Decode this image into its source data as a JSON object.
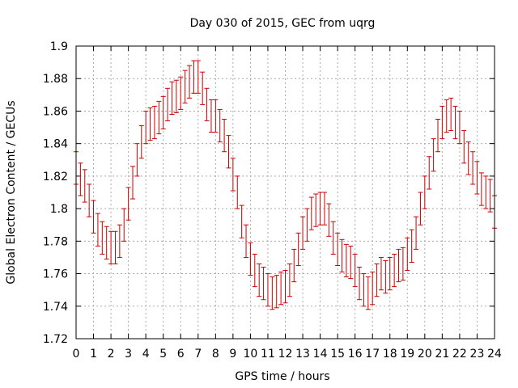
{
  "chart_data": {
    "type": "scatter",
    "title": "Day 030 of 2015, GEC from uqrg",
    "xlabel": "GPS time / hours",
    "ylabel": "Global Electron Content / GECUs",
    "xlim": [
      0,
      24
    ],
    "ylim": [
      1.72,
      1.9
    ],
    "x_ticks": [
      0,
      1,
      2,
      3,
      4,
      5,
      6,
      7,
      8,
      9,
      10,
      11,
      12,
      13,
      14,
      15,
      16,
      17,
      18,
      19,
      20,
      21,
      22,
      23,
      24
    ],
    "x_tick_labels": [
      "0",
      "1",
      "2",
      "3",
      "4",
      "5",
      "6",
      "7",
      "8",
      "9",
      "10",
      "11",
      "12",
      "13",
      "14",
      "15",
      "16",
      "17",
      "18",
      "19",
      "20",
      "21",
      "22",
      "23",
      "24"
    ],
    "y_ticks": [
      1.72,
      1.74,
      1.76,
      1.78,
      1.8,
      1.82,
      1.84,
      1.86,
      1.88,
      1.9
    ],
    "y_tick_labels": [
      "1.72",
      "1.74",
      "1.76",
      "1.78",
      "1.8",
      "1.82",
      "1.84",
      "1.86",
      "1.88",
      "1.9"
    ],
    "grid": true,
    "error_bars": true,
    "error_half_width": 0.01,
    "series_color": "#cc0000",
    "x": [
      0,
      0.25,
      0.5,
      0.75,
      1,
      1.25,
      1.5,
      1.75,
      2,
      2.25,
      2.5,
      2.75,
      3,
      3.25,
      3.5,
      3.75,
      4,
      4.25,
      4.5,
      4.75,
      5,
      5.25,
      5.5,
      5.75,
      6,
      6.25,
      6.5,
      6.75,
      7,
      7.25,
      7.5,
      7.75,
      8,
      8.25,
      8.5,
      8.75,
      9,
      9.25,
      9.5,
      9.75,
      10,
      10.25,
      10.5,
      10.75,
      11,
      11.25,
      11.5,
      11.75,
      12,
      12.25,
      12.5,
      12.75,
      13,
      13.25,
      13.5,
      13.75,
      14,
      14.25,
      14.5,
      14.75,
      15,
      15.25,
      15.5,
      15.75,
      16,
      16.25,
      16.5,
      16.75,
      17,
      17.25,
      17.5,
      17.75,
      18,
      18.25,
      18.5,
      18.75,
      19,
      19.25,
      19.5,
      19.75,
      20,
      20.25,
      20.5,
      20.75,
      21,
      21.25,
      21.5,
      21.75,
      22,
      22.25,
      22.5,
      22.75,
      23,
      23.25,
      23.5,
      23.75,
      24
    ],
    "y": [
      1.825,
      1.818,
      1.814,
      1.805,
      1.795,
      1.787,
      1.782,
      1.779,
      1.776,
      1.776,
      1.78,
      1.79,
      1.803,
      1.816,
      1.83,
      1.841,
      1.85,
      1.852,
      1.853,
      1.856,
      1.859,
      1.864,
      1.868,
      1.869,
      1.871,
      1.875,
      1.878,
      1.881,
      1.881,
      1.874,
      1.864,
      1.857,
      1.857,
      1.851,
      1.845,
      1.835,
      1.821,
      1.81,
      1.792,
      1.78,
      1.769,
      1.762,
      1.756,
      1.754,
      1.75,
      1.748,
      1.749,
      1.751,
      1.752,
      1.756,
      1.765,
      1.775,
      1.785,
      1.79,
      1.797,
      1.799,
      1.8,
      1.8,
      1.793,
      1.782,
      1.775,
      1.771,
      1.768,
      1.767,
      1.762,
      1.754,
      1.75,
      1.748,
      1.751,
      1.756,
      1.76,
      1.758,
      1.76,
      1.762,
      1.765,
      1.766,
      1.772,
      1.777,
      1.785,
      1.8,
      1.81,
      1.822,
      1.833,
      1.845,
      1.853,
      1.857,
      1.858,
      1.853,
      1.85,
      1.838,
      1.831,
      1.825,
      1.819,
      1.812,
      1.81,
      1.808,
      1.798
    ]
  }
}
